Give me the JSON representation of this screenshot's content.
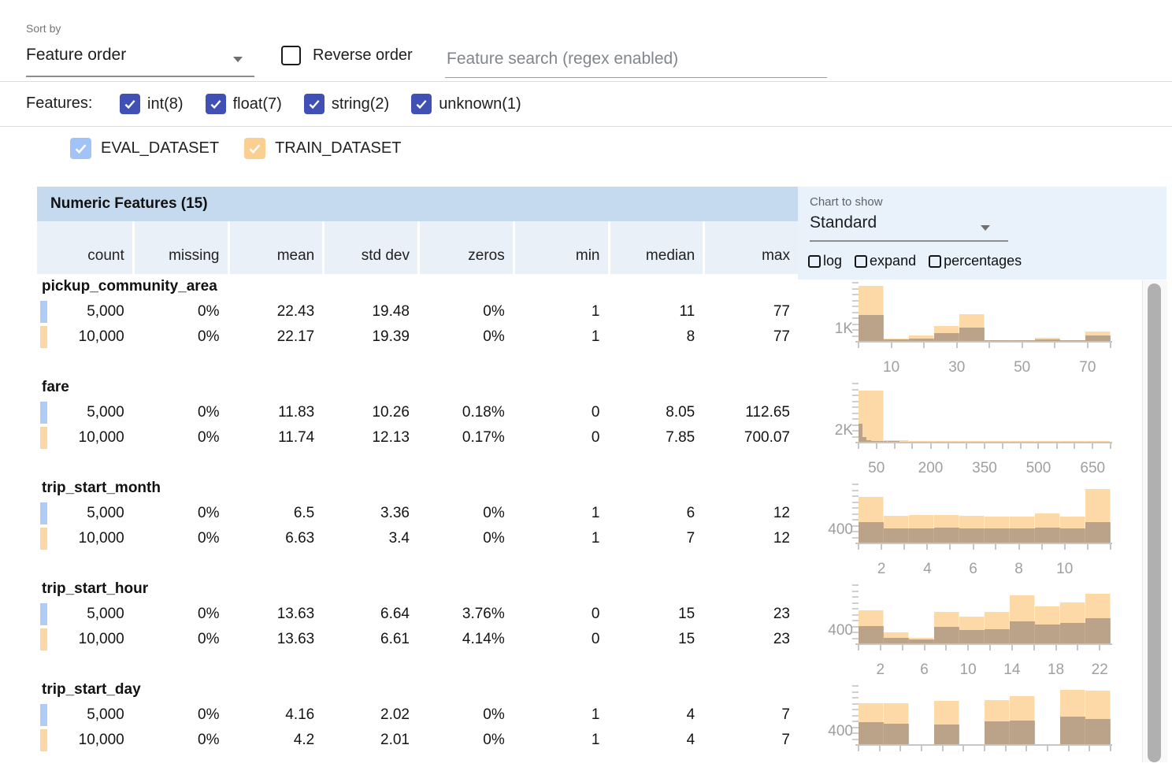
{
  "toolbar": {
    "sort_by_label": "Sort by",
    "sort_by_value": "Feature order",
    "reverse_order_label": "Reverse order",
    "search_placeholder": "Feature search (regex enabled)"
  },
  "filters": {
    "label": "Features:",
    "checkbox_color": "#4050b5",
    "types": [
      {
        "label": "int(8)",
        "checked": true
      },
      {
        "label": "float(7)",
        "checked": true
      },
      {
        "label": "string(2)",
        "checked": true
      },
      {
        "label": "unknown(1)",
        "checked": true
      }
    ]
  },
  "datasets": [
    {
      "name": "EVAL_DATASET",
      "checked": true,
      "checkbox_color": "#a2c3f7",
      "chip_color": "#b0cbf7"
    },
    {
      "name": "TRAIN_DATASET",
      "checked": true,
      "checkbox_color": "#fbce92",
      "chip_color": "#fad7a4"
    }
  ],
  "table": {
    "title": "Numeric Features (15)",
    "columns": [
      "count",
      "missing",
      "mean",
      "std dev",
      "zeros",
      "min",
      "median",
      "max"
    ]
  },
  "chart_controls": {
    "label": "Chart to show",
    "value": "Standard",
    "options": [
      {
        "label": "log",
        "checked": false
      },
      {
        "label": "expand",
        "checked": false
      },
      {
        "label": "percentages",
        "checked": false
      }
    ]
  },
  "features": [
    {
      "name": "pickup_community_area",
      "rows": [
        {
          "dataset": "EVAL_DATASET",
          "values": [
            "5,000",
            "0%",
            "22.43",
            "19.48",
            "0%",
            "1",
            "11",
            "77"
          ]
        },
        {
          "dataset": "TRAIN_DATASET",
          "values": [
            "10,000",
            "0%",
            "22.17",
            "19.39",
            "0%",
            "1",
            "8",
            "77"
          ]
        }
      ]
    },
    {
      "name": "fare",
      "rows": [
        {
          "dataset": "EVAL_DATASET",
          "values": [
            "5,000",
            "0%",
            "11.83",
            "10.26",
            "0.18%",
            "0",
            "8.05",
            "112.65"
          ]
        },
        {
          "dataset": "TRAIN_DATASET",
          "values": [
            "10,000",
            "0%",
            "11.74",
            "12.13",
            "0.17%",
            "0",
            "7.85",
            "700.07"
          ]
        }
      ]
    },
    {
      "name": "trip_start_month",
      "rows": [
        {
          "dataset": "EVAL_DATASET",
          "values": [
            "5,000",
            "0%",
            "6.5",
            "3.36",
            "0%",
            "1",
            "6",
            "12"
          ]
        },
        {
          "dataset": "TRAIN_DATASET",
          "values": [
            "10,000",
            "0%",
            "6.63",
            "3.4",
            "0%",
            "1",
            "7",
            "12"
          ]
        }
      ]
    },
    {
      "name": "trip_start_hour",
      "rows": [
        {
          "dataset": "EVAL_DATASET",
          "values": [
            "5,000",
            "0%",
            "13.63",
            "6.64",
            "3.76%",
            "0",
            "15",
            "23"
          ]
        },
        {
          "dataset": "TRAIN_DATASET",
          "values": [
            "10,000",
            "0%",
            "13.63",
            "6.61",
            "4.14%",
            "0",
            "15",
            "23"
          ]
        }
      ]
    },
    {
      "name": "trip_start_day",
      "rows": [
        {
          "dataset": "EVAL_DATASET",
          "values": [
            "5,000",
            "0%",
            "4.16",
            "2.02",
            "0%",
            "1",
            "4",
            "7"
          ]
        },
        {
          "dataset": "TRAIN_DATASET",
          "values": [
            "10,000",
            "0%",
            "4.2",
            "2.01",
            "0%",
            "1",
            "4",
            "7"
          ]
        }
      ]
    }
  ],
  "chart_data": [
    {
      "type": "bar",
      "feature": "pickup_community_area",
      "ylabel": "1K",
      "ylabel_value": 1000,
      "ymax": 5130,
      "x_range": [
        0,
        77
      ],
      "xticks": [
        {
          "f": 0
        },
        {
          "f": 0.13,
          "l": "10"
        },
        {
          "f": 0.26
        },
        {
          "f": 0.39,
          "l": "30"
        },
        {
          "f": 0.519
        },
        {
          "f": 0.649,
          "l": "50"
        },
        {
          "f": 0.779
        },
        {
          "f": 0.909,
          "l": "70"
        },
        {
          "f": 1
        }
      ],
      "series": {
        "train": {
          "color": "#fcd9a6",
          "bar_w": 0.1,
          "counts": [
            4600,
            200,
            460,
            1250,
            2240,
            65,
            65,
            265,
            65,
            790
          ]
        },
        "eval": {
          "color": "rgba(121,110,107,0.5)",
          "bar_w": 0.1,
          "counts": [
            2190,
            125,
            190,
            625,
            1125,
            60,
            60,
            125,
            60,
            440
          ]
        }
      }
    },
    {
      "type": "bar",
      "feature": "fare",
      "ylabel": "2K",
      "ylabel_value": 2000,
      "ymax": 10800,
      "x_range": [
        0,
        700
      ],
      "xticks": [
        {
          "f": 0
        },
        {
          "f": 0.071,
          "l": "50"
        },
        {
          "f": 0.143
        },
        {
          "f": 0.214
        },
        {
          "f": 0.286,
          "l": "200"
        },
        {
          "f": 0.357
        },
        {
          "f": 0.429
        },
        {
          "f": 0.5,
          "l": "350"
        },
        {
          "f": 0.571
        },
        {
          "f": 0.643
        },
        {
          "f": 0.714,
          "l": "500"
        },
        {
          "f": 0.786
        },
        {
          "f": 0.857
        },
        {
          "f": 0.929,
          "l": "650"
        },
        {
          "f": 1
        }
      ],
      "series": {
        "train": {
          "color": "#fcd9a6",
          "bar_w": 0.1,
          "counts": [
            9000,
            280,
            140,
            140,
            80,
            70,
            70,
            70,
            70,
            80
          ]
        },
        "eval": {
          "color": "rgba(121,110,107,0.5)",
          "bar_w": 0.0163,
          "counts": [
            3200,
            780,
            310,
            160,
            160,
            80,
            80,
            80,
            80,
            70
          ]
        }
      }
    },
    {
      "type": "bar",
      "feature": "trip_start_month",
      "ylabel": "400",
      "ylabel_value": 400,
      "ymax": 1950,
      "x_range": [
        1,
        12
      ],
      "xticks": [
        {
          "f": 0
        },
        {
          "f": 0.091,
          "l": "2"
        },
        {
          "f": 0.182
        },
        {
          "f": 0.273,
          "l": "4"
        },
        {
          "f": 0.364
        },
        {
          "f": 0.455,
          "l": "6"
        },
        {
          "f": 0.545
        },
        {
          "f": 0.636,
          "l": "8"
        },
        {
          "f": 0.727
        },
        {
          "f": 0.818,
          "l": "10"
        },
        {
          "f": 0.909
        },
        {
          "f": 1
        }
      ],
      "series": {
        "train": {
          "color": "#fcd9a6",
          "bar_w": 0.1,
          "counts": [
            1450,
            850,
            875,
            875,
            850,
            825,
            825,
            925,
            825,
            1700
          ]
        },
        "eval": {
          "color": "rgba(121,110,107,0.5)",
          "bar_w": 0.1,
          "counts": [
            660,
            455,
            455,
            475,
            455,
            455,
            455,
            475,
            455,
            660
          ]
        }
      }
    },
    {
      "type": "bar",
      "feature": "trip_start_hour",
      "ylabel": "400",
      "ylabel_value": 400,
      "ymax": 1950,
      "x_range": [
        0,
        23
      ],
      "xticks": [
        {
          "f": 0
        },
        {
          "f": 0.087,
          "l": "2"
        },
        {
          "f": 0.174
        },
        {
          "f": 0.261,
          "l": "6"
        },
        {
          "f": 0.348
        },
        {
          "f": 0.435,
          "l": "10"
        },
        {
          "f": 0.522
        },
        {
          "f": 0.609,
          "l": "14"
        },
        {
          "f": 0.696
        },
        {
          "f": 0.783,
          "l": "18"
        },
        {
          "f": 0.87
        },
        {
          "f": 0.957,
          "l": "22"
        }
      ],
      "series": {
        "train": {
          "color": "#fcd9a6",
          "bar_w": 0.1,
          "counts": [
            1050,
            350,
            175,
            1000,
            850,
            1000,
            1525,
            1175,
            1300,
            1575
          ]
        },
        "eval": {
          "color": "rgba(121,110,107,0.5)",
          "bar_w": 0.1,
          "counts": [
            550,
            175,
            125,
            525,
            425,
            450,
            700,
            600,
            650,
            800
          ]
        }
      }
    },
    {
      "type": "bar",
      "feature": "trip_start_day",
      "ylabel": "400",
      "ylabel_value": 400,
      "ymax": 1900,
      "x_range": [
        1,
        7
      ],
      "xticks": [
        {
          "f": 0
        },
        {
          "f": 0.083
        },
        {
          "f": 0.167
        },
        {
          "f": 0.25
        },
        {
          "f": 0.333
        },
        {
          "f": 0.417
        },
        {
          "f": 0.5
        },
        {
          "f": 0.583
        },
        {
          "f": 0.667
        },
        {
          "f": 0.75
        },
        {
          "f": 0.833
        },
        {
          "f": 0.917
        },
        {
          "f": 1
        }
      ],
      "series": {
        "train": {
          "color": "#fcd9a6",
          "bar_w": 0.1,
          "counts": [
            1260,
            1260,
            0,
            1330,
            0,
            1355,
            1475,
            0,
            1670,
            1650
          ]
        },
        "eval": {
          "color": "rgba(121,110,107,0.5)",
          "bar_w": 0.1,
          "counts": [
            670,
            645,
            0,
            600,
            0,
            695,
            740,
            0,
            860,
            790
          ]
        }
      }
    }
  ]
}
